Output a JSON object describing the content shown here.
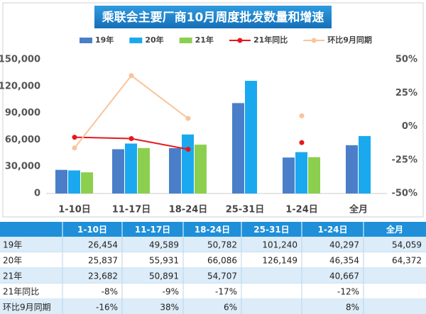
{
  "chart_data": {
    "type": "bar",
    "title": "乘联会主要厂商10月周度批发数量和增速",
    "categories": [
      "1-10日",
      "11-17日",
      "18-24日",
      "25-31日",
      "1-24日",
      "全月"
    ],
    "series": [
      {
        "name": "19年",
        "type": "bar",
        "color": "#4a7ec8",
        "values": [
          26454,
          49589,
          50782,
          101240,
          40297,
          54059
        ],
        "value_labels": [
          "26,454",
          "49,589",
          "50,782",
          "101,240",
          "40,297",
          "54,059"
        ]
      },
      {
        "name": "20年",
        "type": "bar",
        "color": "#1aa9ee",
        "values": [
          25837,
          55931,
          66086,
          126149,
          46354,
          64372
        ],
        "value_labels": [
          "25,837",
          "55,931",
          "66,086",
          "126,149",
          "46,354",
          "64,372"
        ]
      },
      {
        "name": "21年",
        "type": "bar",
        "color": "#8ccf4f",
        "values": [
          23682,
          50891,
          54707,
          null,
          40667,
          null
        ],
        "value_labels": [
          "23,682",
          "50,891",
          "54,707",
          null,
          "40,667",
          null
        ]
      },
      {
        "name": "21年同比",
        "type": "line",
        "axis": "y2",
        "color": "#e8161c",
        "values": [
          -8,
          -9,
          -17,
          null,
          -12,
          null
        ],
        "value_labels": [
          "-8%",
          "-9%",
          "-17%",
          null,
          "-12%",
          null
        ]
      },
      {
        "name": "环比9月同期",
        "type": "line",
        "axis": "y2",
        "color": "#f8c49b",
        "values": [
          -16,
          38,
          6,
          null,
          8,
          null
        ],
        "value_labels": [
          "-16%",
          "38%",
          "6%",
          null,
          "8%",
          null
        ]
      }
    ],
    "ylim": [
      0,
      150000
    ],
    "yticks": [
      0,
      {
        "value": 30000,
        "label": "30,000"
      },
      {
        "value": 60000,
        "label": "60,000"
      },
      {
        "value": 90000,
        "label": "90,000"
      },
      {
        "value": 120000,
        "label": "120,000"
      },
      {
        "value": 150000,
        "label": "150,000"
      }
    ],
    "y2lim": [
      -50,
      50
    ],
    "y2ticks": [
      {
        "value": -50,
        "label": "-50%"
      },
      {
        "value": -25,
        "label": "-25%"
      },
      {
        "value": 0,
        "label": "0%"
      },
      {
        "value": 25,
        "label": "25%"
      },
      {
        "value": 50,
        "label": "50%"
      }
    ]
  }
}
